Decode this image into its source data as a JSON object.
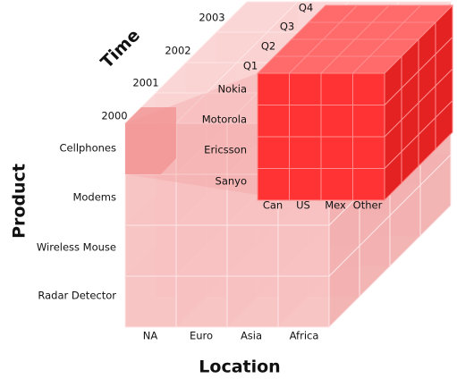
{
  "axes": {
    "time": "Time",
    "product": "Product",
    "location": "Location"
  },
  "years": [
    "2000",
    "2001",
    "2002",
    "2003"
  ],
  "quarters": [
    "Q1",
    "Q2",
    "Q3",
    "Q4"
  ],
  "products": [
    "Cellphones",
    "Modems",
    "Wireless Mouse",
    "Radar Detector"
  ],
  "brands": [
    "Nokia",
    "Motorola",
    "Ericsson",
    "Sanyo"
  ],
  "locations": [
    "NA",
    "Euro",
    "Asia",
    "Africa"
  ],
  "sub_locations": [
    "Can",
    "US",
    "Mex",
    "Other"
  ]
}
